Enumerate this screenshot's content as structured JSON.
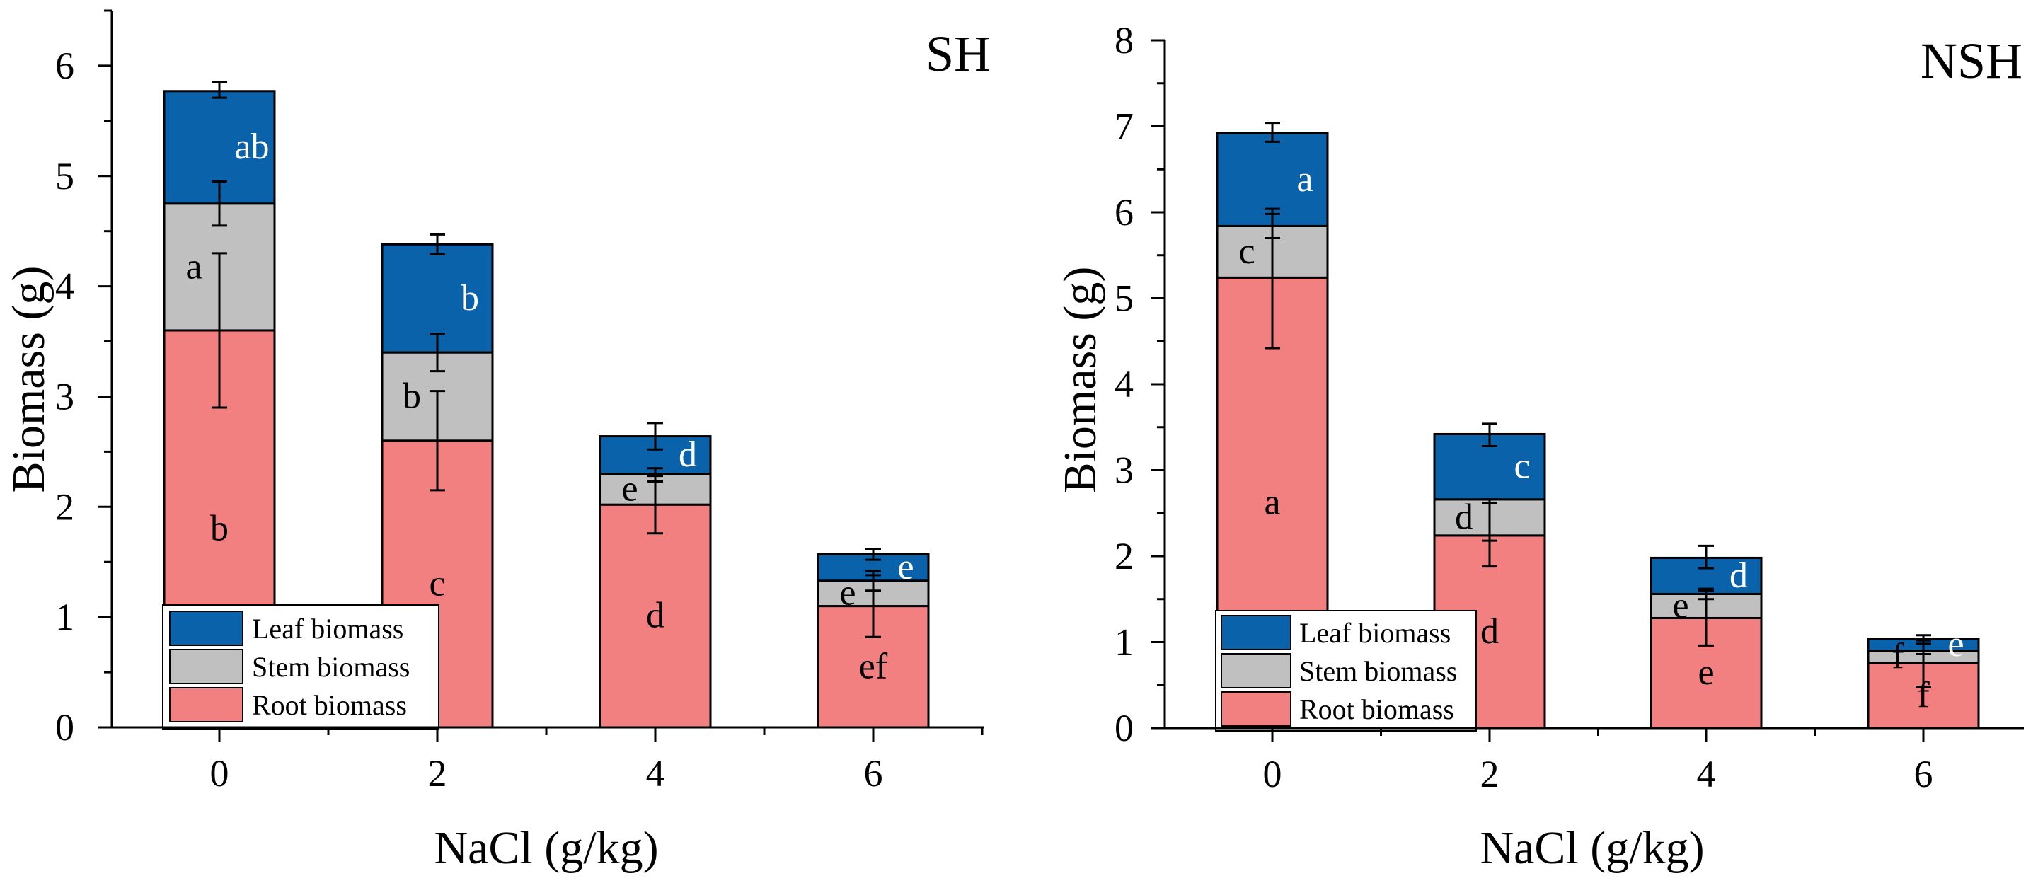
{
  "figure": {
    "legend_labels": [
      "Leaf biomass",
      "Stem biomass",
      "Root biomass"
    ],
    "colors": {
      "root": "#f28080",
      "stem": "#c0c0c0",
      "leaf": "#0a62aa",
      "axis": "#000000"
    }
  },
  "chart_data": [
    {
      "type": "bar",
      "stacked": true,
      "title": "SH",
      "xlabel": "NaCl (g/kg)",
      "ylabel": "Biomass (g)",
      "categories": [
        "0",
        "2",
        "4",
        "6"
      ],
      "ylim": [
        0,
        6.5
      ],
      "yticks": [
        0,
        1,
        2,
        3,
        4,
        5,
        6
      ],
      "legend_position": "bottom-left",
      "grid": false,
      "series": [
        {
          "name": "Root biomass",
          "color": "#f28080",
          "values": [
            3.6,
            2.6,
            2.02,
            1.1
          ],
          "error_top": [
            4.3,
            3.05,
            2.28,
            1.38
          ],
          "error_bottom": [
            2.9,
            2.15,
            1.76,
            0.82
          ],
          "letters": [
            "b",
            "c",
            "d",
            "ef"
          ]
        },
        {
          "name": "Stem biomass",
          "color": "#c0c0c0",
          "values": [
            1.15,
            0.8,
            0.28,
            0.23
          ],
          "error_top": [
            4.95,
            3.57,
            2.35,
            1.42
          ],
          "error_bottom": [
            4.55,
            3.23,
            2.23,
            1.24
          ],
          "letters": [
            "a",
            "b",
            "e",
            "e"
          ]
        },
        {
          "name": "Leaf biomass",
          "color": "#0a62aa",
          "values": [
            1.02,
            0.98,
            0.34,
            0.24
          ],
          "error_top": [
            5.85,
            4.47,
            2.76,
            1.62
          ],
          "error_bottom": [
            5.71,
            4.29,
            2.52,
            1.52
          ],
          "letters": [
            "ab",
            "b",
            "d",
            "e"
          ]
        }
      ]
    },
    {
      "type": "bar",
      "stacked": true,
      "title": "NSH",
      "xlabel": "NaCl (g/kg)",
      "ylabel": "Biomass (g)",
      "categories": [
        "0",
        "2",
        "4",
        "6"
      ],
      "ylim": [
        0,
        8
      ],
      "yticks": [
        0,
        1,
        2,
        3,
        4,
        5,
        6,
        7,
        8
      ],
      "legend_position": "bottom-left",
      "grid": false,
      "series": [
        {
          "name": "Root biomass",
          "color": "#f28080",
          "values": [
            5.24,
            2.24,
            1.28,
            0.76
          ],
          "error_top": [
            6.04,
            2.62,
            1.62,
            1.02
          ],
          "error_bottom": [
            4.42,
            1.88,
            0.96,
            0.48
          ],
          "letters": [
            "a",
            "d",
            "e",
            "f"
          ]
        },
        {
          "name": "Stem biomass",
          "color": "#c0c0c0",
          "values": [
            0.6,
            0.42,
            0.28,
            0.14
          ],
          "error_top": [
            5.98,
            2.66,
            1.6,
            1.04
          ],
          "error_bottom": [
            5.7,
            2.18,
            1.5,
            0.86
          ],
          "letters": [
            "c",
            "d",
            "e",
            "f"
          ]
        },
        {
          "name": "Leaf biomass",
          "color": "#0a62aa",
          "values": [
            1.08,
            0.76,
            0.42,
            0.14
          ],
          "error_top": [
            7.04,
            3.54,
            2.12,
            1.08
          ],
          "error_bottom": [
            6.82,
            3.28,
            1.86,
            0.98
          ],
          "letters": [
            "a",
            "c",
            "d",
            "e"
          ]
        }
      ]
    }
  ]
}
